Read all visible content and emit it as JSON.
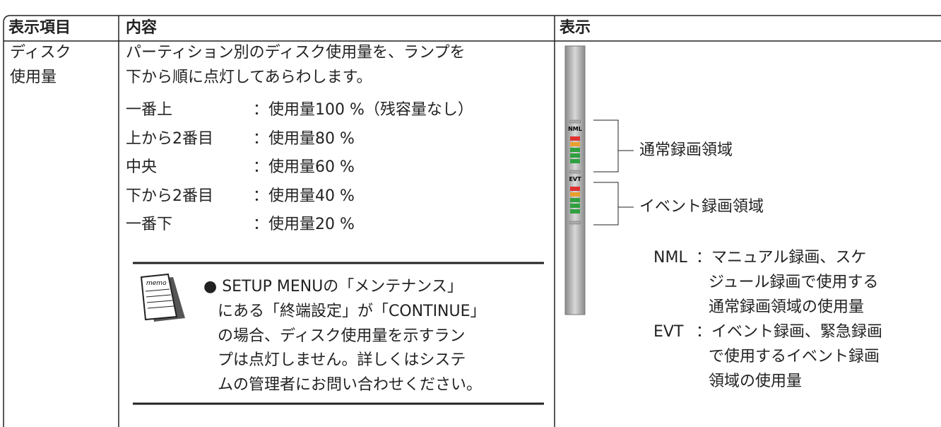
{
  "table": {
    "headers": [
      "表示項目",
      "内容",
      "表示"
    ],
    "item": [
      "ディスク",
      "使用量"
    ],
    "content": {
      "intro": [
        "パーティション別のディスク使用量を、ランプを",
        "下から順に点灯してあらわします。"
      ],
      "levels": [
        [
          "一番上",
          "：使用量100 %（残容量なし）"
        ],
        [
          "上から2番目",
          "：使用量80 %"
        ],
        [
          "中央",
          "：使用量60 %"
        ],
        [
          "下から2番目",
          "：使用量40 %"
        ],
        [
          "一番下",
          "：使用量20 %"
        ]
      ],
      "memo": {
        "icon_label": "memo",
        "lines": [
          "● SETUP MENUの「メンテナンス」",
          "にある「終端設定」が「CONTINUE」",
          "の場合、ディスク使用量を示すラン",
          "プは点灯しません。詳しくはシステ",
          "ムの管理者にお問い合わせください。"
        ]
      }
    },
    "display": {
      "meter_labels": [
        "NML",
        "EVT"
      ],
      "regions": [
        "通常録画領域",
        "イベント録画領域"
      ],
      "notes": [
        {
          "term": "NML",
          "lines": [
            "：マニュアル録画、スケ",
            "ジュール録画で使用する",
            "通常録画領域の使用量"
          ]
        },
        {
          "term": "EVT",
          "lines": [
            "：イベント録画、緊急録画",
            "で使用するイベント録画",
            "領域の使用量"
          ]
        }
      ]
    }
  }
}
